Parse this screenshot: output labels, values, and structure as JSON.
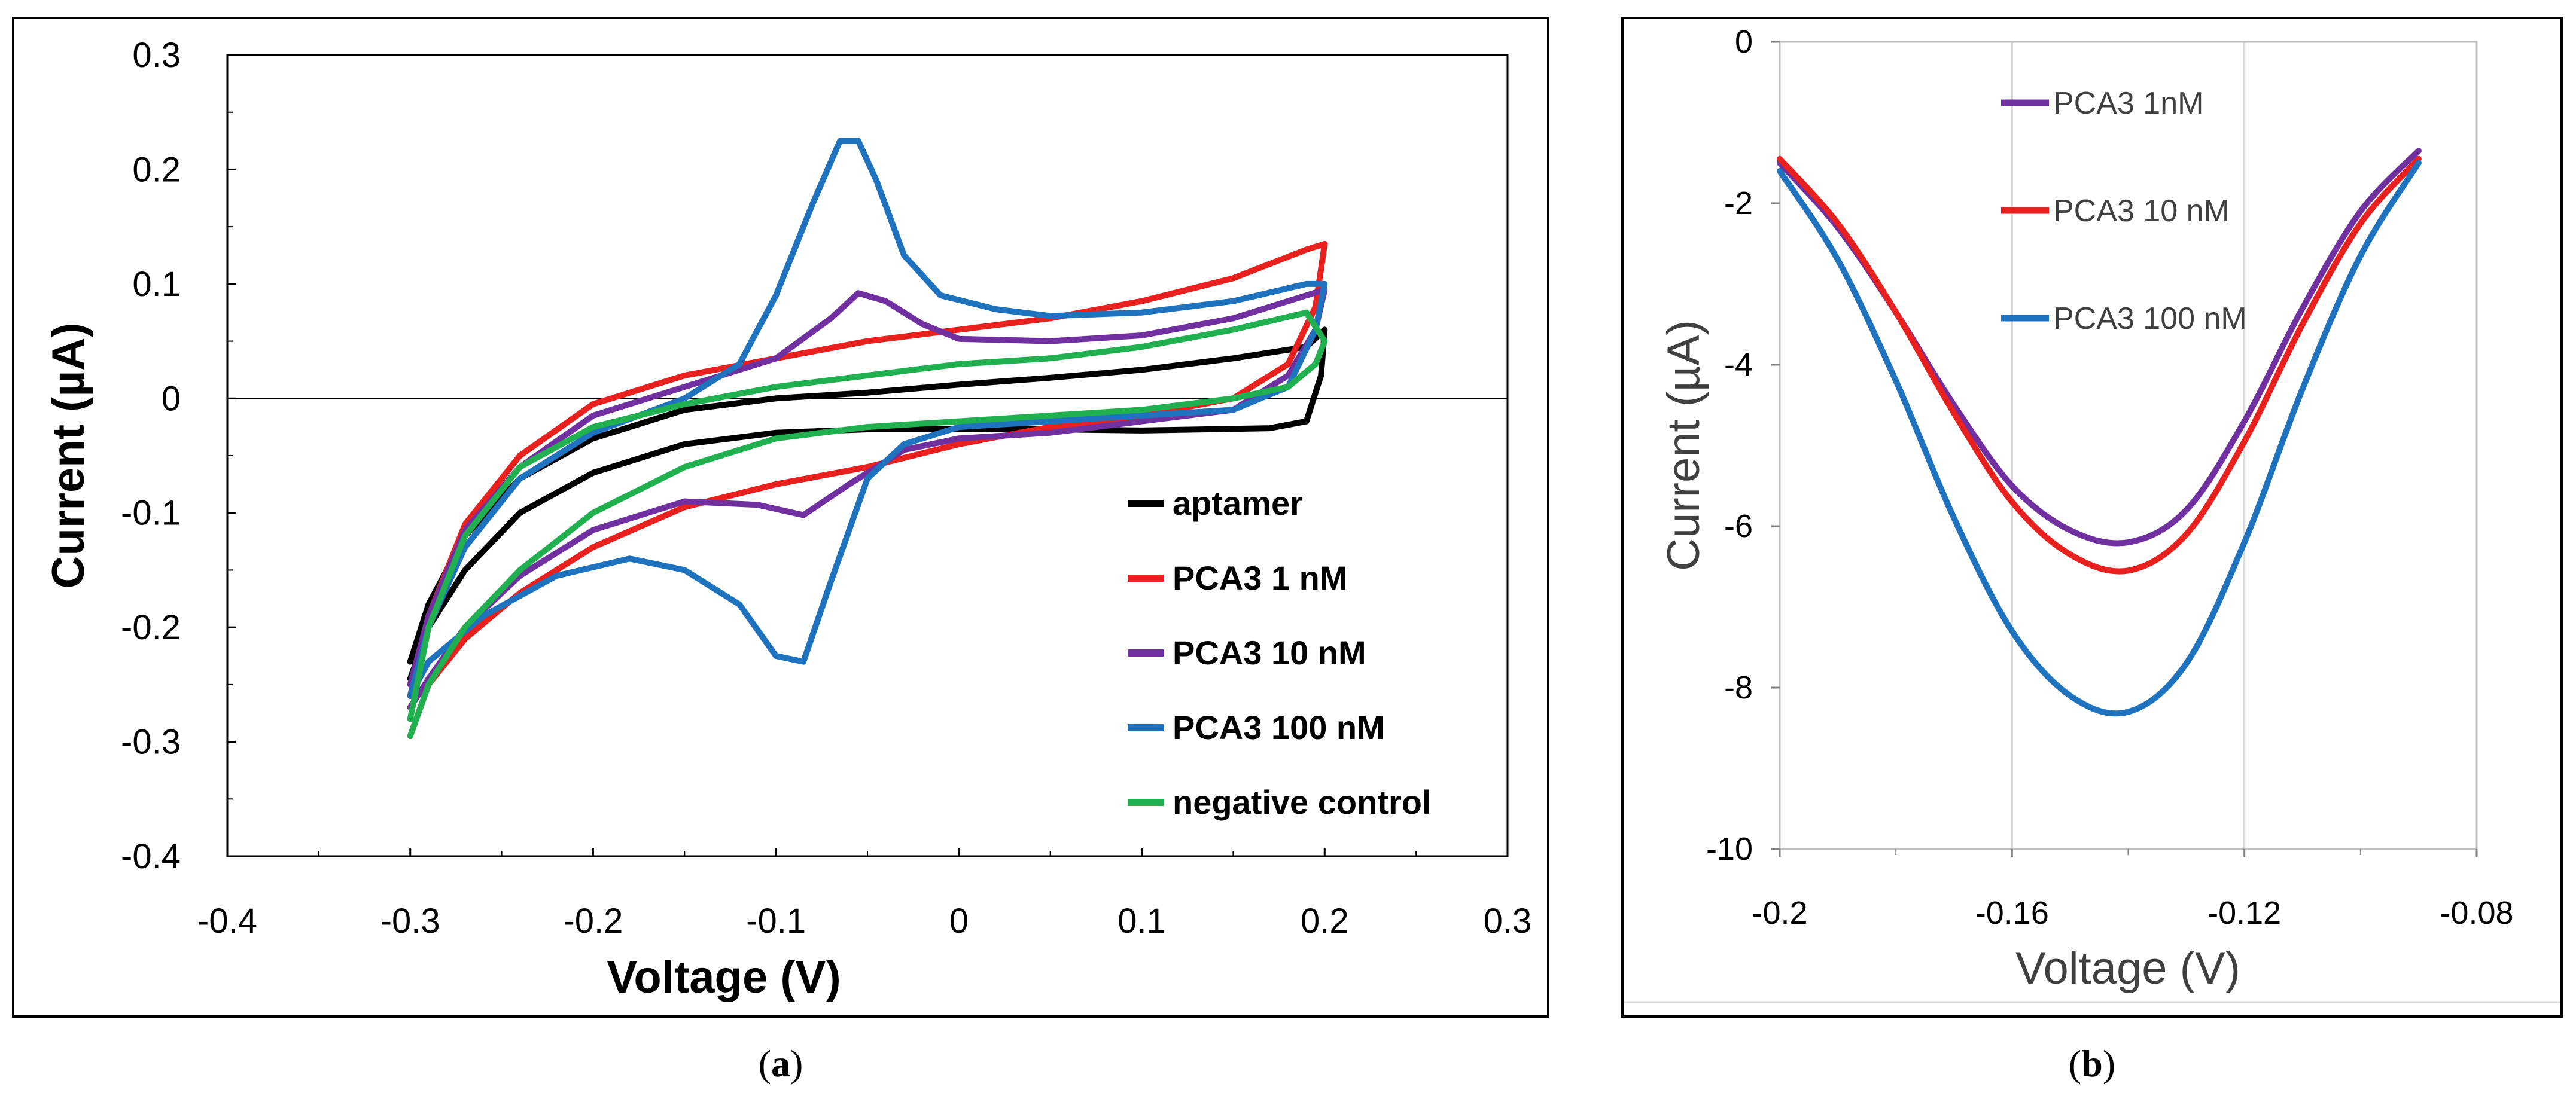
{
  "chart_data": [
    {
      "id": "a",
      "type": "line",
      "caption_letter": "a",
      "title": "",
      "xlabel": "Voltage (V)",
      "ylabel": "Current (µA)",
      "xlim": [
        -0.4,
        0.3
      ],
      "ylim": [
        -0.4,
        0.3
      ],
      "xticks": [
        -0.4,
        -0.3,
        -0.2,
        -0.1,
        0,
        0.1,
        0.2,
        0.3
      ],
      "xtick_labels": [
        "-0.4",
        "-0.3",
        "-0.2",
        "-0.1",
        "0",
        "0.1",
        "0.2",
        "0.3"
      ],
      "yticks": [
        0.3,
        0.2,
        0.1,
        0,
        -0.1,
        -0.2,
        -0.3,
        -0.4
      ],
      "ytick_labels": [
        "0.3",
        "0.2",
        "0.1",
        "0",
        "-0.1",
        "-0.2",
        "-0.3",
        "-0.4"
      ],
      "legend_position": "bottom-right",
      "series": [
        {
          "name": "aptamer",
          "color": "#000000",
          "points": [
            [
              -0.3,
              -0.23
            ],
            [
              -0.29,
              -0.18
            ],
            [
              -0.27,
              -0.12
            ],
            [
              -0.24,
              -0.07
            ],
            [
              -0.2,
              -0.035
            ],
            [
              -0.15,
              -0.01
            ],
            [
              -0.1,
              0.0
            ],
            [
              -0.05,
              0.005
            ],
            [
              0.0,
              0.012
            ],
            [
              0.05,
              0.018
            ],
            [
              0.1,
              0.025
            ],
            [
              0.15,
              0.035
            ],
            [
              0.19,
              0.045
            ],
            [
              0.2,
              0.06
            ],
            [
              0.198,
              0.02
            ],
            [
              0.19,
              -0.02
            ],
            [
              0.17,
              -0.026
            ],
            [
              0.1,
              -0.028
            ],
            [
              0.05,
              -0.027
            ],
            [
              0.0,
              -0.027
            ],
            [
              -0.05,
              -0.027
            ],
            [
              -0.1,
              -0.03
            ],
            [
              -0.15,
              -0.04
            ],
            [
              -0.2,
              -0.065
            ],
            [
              -0.24,
              -0.1
            ],
            [
              -0.27,
              -0.15
            ],
            [
              -0.29,
              -0.2
            ],
            [
              -0.3,
              -0.245
            ]
          ]
        },
        {
          "name": "PCA3 1 nM",
          "color": "#e8201e",
          "points": [
            [
              -0.3,
              -0.26
            ],
            [
              -0.29,
              -0.19
            ],
            [
              -0.27,
              -0.11
            ],
            [
              -0.24,
              -0.05
            ],
            [
              -0.2,
              -0.005
            ],
            [
              -0.15,
              0.02
            ],
            [
              -0.1,
              0.035
            ],
            [
              -0.05,
              0.05
            ],
            [
              0.0,
              0.06
            ],
            [
              0.05,
              0.07
            ],
            [
              0.1,
              0.085
            ],
            [
              0.15,
              0.105
            ],
            [
              0.19,
              0.13
            ],
            [
              0.2,
              0.135
            ],
            [
              0.195,
              0.08
            ],
            [
              0.18,
              0.03
            ],
            [
              0.15,
              0.0
            ],
            [
              0.1,
              -0.015
            ],
            [
              0.05,
              -0.025
            ],
            [
              0.0,
              -0.04
            ],
            [
              -0.05,
              -0.06
            ],
            [
              -0.1,
              -0.075
            ],
            [
              -0.15,
              -0.095
            ],
            [
              -0.2,
              -0.13
            ],
            [
              -0.24,
              -0.17
            ],
            [
              -0.27,
              -0.21
            ],
            [
              -0.29,
              -0.25
            ],
            [
              -0.3,
              -0.295
            ]
          ]
        },
        {
          "name": "PCA3 10 nM",
          "color": "#7030a0",
          "points": [
            [
              -0.3,
              -0.25
            ],
            [
              -0.29,
              -0.19
            ],
            [
              -0.27,
              -0.115
            ],
            [
              -0.24,
              -0.06
            ],
            [
              -0.2,
              -0.015
            ],
            [
              -0.15,
              0.01
            ],
            [
              -0.1,
              0.035
            ],
            [
              -0.07,
              0.07
            ],
            [
              -0.055,
              0.092
            ],
            [
              -0.04,
              0.085
            ],
            [
              -0.02,
              0.065
            ],
            [
              0.0,
              0.052
            ],
            [
              0.05,
              0.05
            ],
            [
              0.1,
              0.055
            ],
            [
              0.15,
              0.07
            ],
            [
              0.19,
              0.09
            ],
            [
              0.2,
              0.095
            ],
            [
              0.195,
              0.06
            ],
            [
              0.18,
              0.02
            ],
            [
              0.15,
              -0.01
            ],
            [
              0.1,
              -0.02
            ],
            [
              0.05,
              -0.03
            ],
            [
              0.0,
              -0.035
            ],
            [
              -0.03,
              -0.045
            ],
            [
              -0.06,
              -0.075
            ],
            [
              -0.085,
              -0.102
            ],
            [
              -0.11,
              -0.093
            ],
            [
              -0.15,
              -0.09
            ],
            [
              -0.2,
              -0.115
            ],
            [
              -0.24,
              -0.155
            ],
            [
              -0.27,
              -0.2
            ],
            [
              -0.29,
              -0.245
            ],
            [
              -0.3,
              -0.27
            ]
          ]
        },
        {
          "name": "PCA3 100 nM",
          "color": "#1f72be",
          "points": [
            [
              -0.3,
              -0.26
            ],
            [
              -0.29,
              -0.2
            ],
            [
              -0.27,
              -0.13
            ],
            [
              -0.24,
              -0.07
            ],
            [
              -0.2,
              -0.03
            ],
            [
              -0.15,
              0.0
            ],
            [
              -0.12,
              0.03
            ],
            [
              -0.1,
              0.09
            ],
            [
              -0.08,
              0.17
            ],
            [
              -0.065,
              0.225
            ],
            [
              -0.055,
              0.225
            ],
            [
              -0.045,
              0.19
            ],
            [
              -0.03,
              0.125
            ],
            [
              -0.01,
              0.09
            ],
            [
              0.02,
              0.078
            ],
            [
              0.05,
              0.072
            ],
            [
              0.1,
              0.075
            ],
            [
              0.15,
              0.085
            ],
            [
              0.19,
              0.1
            ],
            [
              0.2,
              0.1
            ],
            [
              0.195,
              0.06
            ],
            [
              0.18,
              0.01
            ],
            [
              0.15,
              -0.01
            ],
            [
              0.1,
              -0.015
            ],
            [
              0.05,
              -0.02
            ],
            [
              0.0,
              -0.025
            ],
            [
              -0.03,
              -0.04
            ],
            [
              -0.05,
              -0.07
            ],
            [
              -0.07,
              -0.16
            ],
            [
              -0.085,
              -0.23
            ],
            [
              -0.1,
              -0.225
            ],
            [
              -0.12,
              -0.18
            ],
            [
              -0.15,
              -0.15
            ],
            [
              -0.18,
              -0.14
            ],
            [
              -0.22,
              -0.155
            ],
            [
              -0.26,
              -0.19
            ],
            [
              -0.29,
              -0.23
            ],
            [
              -0.3,
              -0.26
            ]
          ]
        },
        {
          "name": "negative control",
          "color": "#20b050",
          "points": [
            [
              -0.3,
              -0.28
            ],
            [
              -0.29,
              -0.2
            ],
            [
              -0.27,
              -0.12
            ],
            [
              -0.24,
              -0.06
            ],
            [
              -0.2,
              -0.025
            ],
            [
              -0.15,
              -0.005
            ],
            [
              -0.1,
              0.01
            ],
            [
              -0.05,
              0.02
            ],
            [
              0.0,
              0.03
            ],
            [
              0.05,
              0.035
            ],
            [
              0.1,
              0.045
            ],
            [
              0.15,
              0.06
            ],
            [
              0.19,
              0.075
            ],
            [
              0.2,
              0.05
            ],
            [
              0.195,
              0.03
            ],
            [
              0.18,
              0.01
            ],
            [
              0.15,
              0.0
            ],
            [
              0.1,
              -0.01
            ],
            [
              0.05,
              -0.015
            ],
            [
              0.0,
              -0.02
            ],
            [
              -0.05,
              -0.025
            ],
            [
              -0.1,
              -0.035
            ],
            [
              -0.15,
              -0.06
            ],
            [
              -0.2,
              -0.1
            ],
            [
              -0.24,
              -0.15
            ],
            [
              -0.27,
              -0.2
            ],
            [
              -0.29,
              -0.25
            ],
            [
              -0.3,
              -0.295
            ]
          ]
        }
      ]
    },
    {
      "id": "b",
      "type": "line",
      "caption_letter": "b",
      "title": "",
      "xlabel": "Voltage (V)",
      "ylabel": "Current (µA)",
      "xlim": [
        -0.2,
        -0.08
      ],
      "ylim": [
        -10,
        0
      ],
      "xticks": [
        -0.2,
        -0.16,
        -0.12,
        -0.08
      ],
      "xtick_labels": [
        "-0.2",
        "-0.16",
        "-0.12",
        "-0.08"
      ],
      "yticks": [
        0,
        -2,
        -4,
        -6,
        -8,
        -10
      ],
      "ytick_labels": [
        "0",
        "-2",
        "-4",
        "-6",
        "-8",
        "-10"
      ],
      "legend_position": "top-center",
      "series": [
        {
          "name": "PCA3 1nM",
          "color": "#7030a0",
          "points": [
            [
              -0.2,
              -1.5
            ],
            [
              -0.19,
              -2.3
            ],
            [
              -0.18,
              -3.35
            ],
            [
              -0.17,
              -4.5
            ],
            [
              -0.16,
              -5.5
            ],
            [
              -0.15,
              -6.05
            ],
            [
              -0.14,
              -6.2
            ],
            [
              -0.13,
              -5.8
            ],
            [
              -0.12,
              -4.7
            ],
            [
              -0.11,
              -3.3
            ],
            [
              -0.1,
              -2.1
            ],
            [
              -0.09,
              -1.35
            ]
          ]
        },
        {
          "name": "PCA3 10 nM",
          "color": "#e8201e",
          "points": [
            [
              -0.2,
              -1.45
            ],
            [
              -0.19,
              -2.25
            ],
            [
              -0.18,
              -3.35
            ],
            [
              -0.17,
              -4.6
            ],
            [
              -0.16,
              -5.7
            ],
            [
              -0.15,
              -6.35
            ],
            [
              -0.14,
              -6.55
            ],
            [
              -0.13,
              -6.1
            ],
            [
              -0.12,
              -4.95
            ],
            [
              -0.11,
              -3.5
            ],
            [
              -0.1,
              -2.25
            ],
            [
              -0.09,
              -1.45
            ]
          ]
        },
        {
          "name": "PCA3 100 nM",
          "color": "#1f72be",
          "points": [
            [
              -0.2,
              -1.6
            ],
            [
              -0.19,
              -2.7
            ],
            [
              -0.18,
              -4.2
            ],
            [
              -0.17,
              -5.9
            ],
            [
              -0.16,
              -7.3
            ],
            [
              -0.15,
              -8.1
            ],
            [
              -0.14,
              -8.3
            ],
            [
              -0.13,
              -7.7
            ],
            [
              -0.12,
              -6.2
            ],
            [
              -0.11,
              -4.3
            ],
            [
              -0.1,
              -2.65
            ],
            [
              -0.09,
              -1.5
            ]
          ]
        }
      ]
    }
  ]
}
